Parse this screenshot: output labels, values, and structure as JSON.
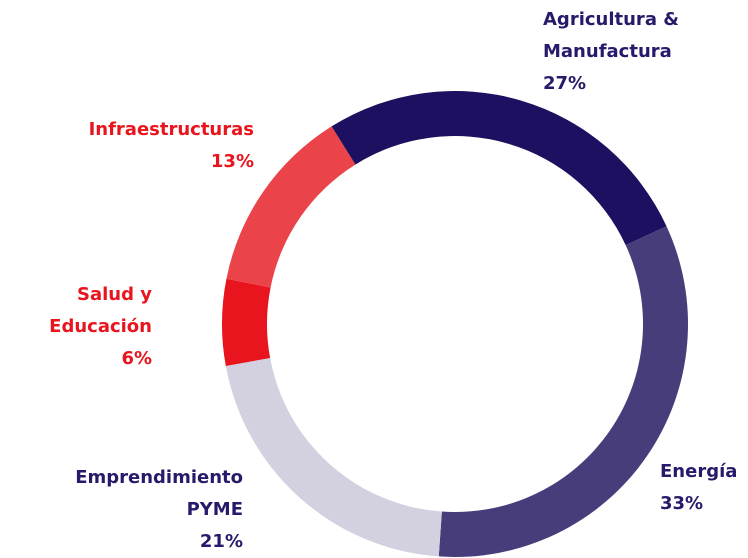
{
  "chart_data": {
    "type": "donut",
    "start_angle": -32,
    "categories": [
      "Agricultura & Manufactura",
      "Energía",
      "Emprendimiento PYME",
      "Salud y Educación",
      "Infraestructuras"
    ],
    "values": [
      27,
      33,
      21,
      6,
      13
    ],
    "value_labels": [
      "27%",
      "33%",
      "21%",
      "6%",
      "13%"
    ],
    "colors": [
      "#1e1060",
      "#463d7a",
      "#d3d1e0",
      "#e8141e",
      "#ea444a"
    ],
    "label_colors": [
      "#261a6a",
      "#261a6a",
      "#261a6a",
      "#e8141e",
      "#e8141e"
    ]
  }
}
